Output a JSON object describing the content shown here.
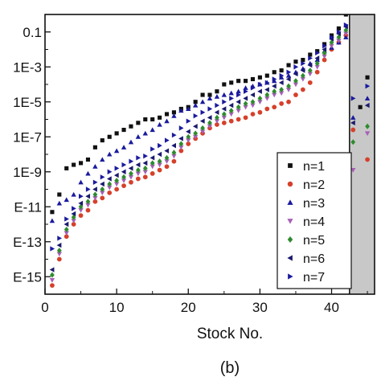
{
  "chart_data": {
    "type": "scatter",
    "panel_label": "(b)",
    "xlabel": "Stock No.",
    "ylabel": "",
    "xlim": [
      0,
      46
    ],
    "ylim_log10": [
      -16,
      0
    ],
    "y_scale": "log",
    "x_ticks": [
      0,
      10,
      20,
      30,
      40
    ],
    "x_tick_labels": [
      "0",
      "10",
      "20",
      "30",
      "40"
    ],
    "y_ticks_log10": [
      -1,
      -3,
      -5,
      -7,
      -9,
      -11,
      -13,
      -15
    ],
    "y_tick_labels": [
      "0.1",
      "1E-3",
      "1E-5",
      "1E-7",
      "1E-9",
      "E-11",
      "E-13",
      "E-15"
    ],
    "shaded_region_x": [
      42.5,
      46
    ],
    "shaded_color": "#c8c8c8",
    "legend_position": "lower-right",
    "series": [
      {
        "name": "n=1",
        "marker": "square",
        "color": "#111111",
        "x": [
          1,
          2,
          3,
          4,
          5,
          6,
          7,
          8,
          9,
          10,
          11,
          12,
          13,
          14,
          15,
          16,
          17,
          18,
          19,
          20,
          21,
          22,
          23,
          24,
          25,
          26,
          27,
          28,
          29,
          30,
          31,
          32,
          33,
          34,
          35,
          36,
          37,
          38,
          39,
          40,
          41,
          42,
          44,
          45
        ],
        "y_log10": [
          -11.3,
          -10.3,
          -8.8,
          -8.6,
          -8.5,
          -8.3,
          -7.6,
          -7.2,
          -7.0,
          -6.8,
          -6.6,
          -6.4,
          -6.2,
          -6.0,
          -6.0,
          -5.9,
          -5.7,
          -5.6,
          -5.4,
          -5.3,
          -5.0,
          -4.6,
          -4.6,
          -4.4,
          -4.0,
          -3.9,
          -3.8,
          -3.8,
          -3.7,
          -3.6,
          -3.5,
          -3.3,
          -3.2,
          -2.9,
          -2.7,
          -2.6,
          -2.3,
          -2.1,
          -1.7,
          -1.2,
          -0.8,
          0.0,
          -5.3,
          -3.6
        ]
      },
      {
        "name": "n=2",
        "marker": "circle",
        "color": "#d6402a",
        "x": [
          1,
          2,
          3,
          4,
          5,
          6,
          7,
          8,
          9,
          10,
          11,
          12,
          13,
          14,
          15,
          16,
          17,
          18,
          19,
          20,
          21,
          22,
          23,
          24,
          25,
          26,
          27,
          28,
          29,
          30,
          31,
          32,
          33,
          34,
          35,
          36,
          37,
          38,
          39,
          40,
          41,
          42,
          43,
          45
        ],
        "y_log10": [
          -15.5,
          -14.0,
          -12.7,
          -12.0,
          -11.5,
          -11.2,
          -10.7,
          -10.5,
          -10.2,
          -10.0,
          -9.8,
          -9.6,
          -9.4,
          -9.3,
          -9.1,
          -8.9,
          -8.7,
          -8.4,
          -7.8,
          -7.4,
          -7.1,
          -6.8,
          -6.5,
          -6.3,
          -6.2,
          -6.1,
          -6.0,
          -5.9,
          -5.7,
          -5.6,
          -5.4,
          -5.3,
          -5.1,
          -5.0,
          -4.6,
          -4.3,
          -3.9,
          -3.3,
          -2.6,
          -2.0,
          -1.6,
          -1.2,
          -6.6,
          -8.3
        ]
      },
      {
        "name": "n=3",
        "marker": "triangle-up",
        "color": "#1a1a9e",
        "x": [
          1,
          2,
          3,
          4,
          5,
          6,
          7,
          8,
          9,
          10,
          11,
          12,
          13,
          14,
          15,
          16,
          17,
          18,
          19,
          20,
          21,
          22,
          23,
          24,
          25,
          26,
          27,
          28,
          29,
          30,
          31,
          32,
          33,
          34,
          35,
          36,
          37,
          38,
          39,
          40,
          41,
          42,
          43,
          45
        ],
        "y_log10": [
          -11.8,
          -10.8,
          -10.6,
          -10.3,
          -9.6,
          -9.1,
          -8.7,
          -8.3,
          -8.0,
          -7.8,
          -7.6,
          -7.3,
          -7.0,
          -6.8,
          -6.6,
          -6.3,
          -6.1,
          -5.8,
          -5.5,
          -5.4,
          -5.2,
          -5.0,
          -4.8,
          -4.7,
          -4.6,
          -4.5,
          -4.4,
          -4.2,
          -4.1,
          -4.0,
          -3.9,
          -3.8,
          -3.6,
          -3.5,
          -3.3,
          -3.1,
          -2.8,
          -2.6,
          -2.1,
          -1.9,
          -1.6,
          -1.3,
          -5.9,
          -4.8
        ]
      },
      {
        "name": "n=4",
        "marker": "triangle-down",
        "color": "#a860b8",
        "x": [
          1,
          2,
          3,
          4,
          5,
          6,
          7,
          8,
          9,
          10,
          11,
          12,
          13,
          14,
          15,
          16,
          17,
          18,
          19,
          20,
          21,
          22,
          23,
          24,
          25,
          26,
          27,
          28,
          29,
          30,
          31,
          32,
          33,
          34,
          35,
          36,
          37,
          38,
          39,
          40,
          41,
          42,
          43,
          45
        ],
        "y_log10": [
          -15.2,
          -13.7,
          -12.5,
          -11.8,
          -11.2,
          -10.9,
          -10.5,
          -10.2,
          -9.9,
          -9.7,
          -9.5,
          -9.3,
          -9.1,
          -9.0,
          -8.7,
          -8.6,
          -8.4,
          -8.1,
          -7.6,
          -7.2,
          -7.0,
          -6.7,
          -6.4,
          -6.1,
          -5.9,
          -5.7,
          -5.5,
          -5.3,
          -5.2,
          -5.0,
          -4.8,
          -4.6,
          -4.5,
          -4.3,
          -4.0,
          -3.7,
          -3.4,
          -3.0,
          -2.4,
          -1.8,
          -1.5,
          -1.1,
          -8.9,
          -6.8
        ]
      },
      {
        "name": "n=5",
        "marker": "diamond",
        "color": "#2e8b2e",
        "x": [
          1,
          2,
          3,
          4,
          5,
          6,
          7,
          8,
          9,
          10,
          11,
          12,
          13,
          14,
          15,
          16,
          17,
          18,
          19,
          20,
          21,
          22,
          23,
          24,
          25,
          26,
          27,
          28,
          29,
          30,
          31,
          32,
          33,
          34,
          35,
          36,
          37,
          38,
          39,
          40,
          41,
          42,
          43,
          45
        ],
        "y_log10": [
          -14.9,
          -13.5,
          -12.3,
          -11.6,
          -11.0,
          -10.7,
          -10.3,
          -10.0,
          -9.7,
          -9.5,
          -9.3,
          -9.1,
          -8.9,
          -8.8,
          -8.5,
          -8.4,
          -8.2,
          -7.9,
          -7.4,
          -7.0,
          -6.8,
          -6.5,
          -6.2,
          -5.9,
          -5.7,
          -5.5,
          -5.3,
          -5.1,
          -5.0,
          -4.8,
          -4.6,
          -4.4,
          -4.3,
          -4.1,
          -3.8,
          -3.5,
          -3.2,
          -2.8,
          -2.2,
          -1.6,
          -1.3,
          -0.9,
          -7.3,
          -6.4
        ]
      },
      {
        "name": "n=6",
        "marker": "triangle-left",
        "color": "#1a1a6e",
        "x": [
          1,
          2,
          3,
          4,
          5,
          6,
          7,
          8,
          9,
          10,
          11,
          12,
          13,
          14,
          15,
          16,
          17,
          18,
          19,
          20,
          21,
          22,
          23,
          24,
          25,
          26,
          27,
          28,
          29,
          30,
          31,
          32,
          33,
          34,
          35,
          36,
          37,
          38,
          39,
          40,
          41,
          42,
          43,
          45
        ],
        "y_log10": [
          -14.6,
          -13.2,
          -12.0,
          -11.4,
          -10.8,
          -10.4,
          -10.0,
          -9.7,
          -9.4,
          -9.2,
          -9.0,
          -8.8,
          -8.6,
          -8.5,
          -8.2,
          -8.0,
          -7.8,
          -7.5,
          -7.1,
          -6.7,
          -6.4,
          -6.1,
          -5.9,
          -5.6,
          -5.4,
          -5.2,
          -5.0,
          -4.8,
          -4.6,
          -4.4,
          -4.3,
          -4.1,
          -3.9,
          -3.7,
          -3.4,
          -3.2,
          -2.9,
          -2.5,
          -2.0,
          -1.4,
          -1.1,
          -0.7,
          -6.2,
          -5.2
        ]
      },
      {
        "name": "n=7",
        "marker": "triangle-right",
        "color": "#1a1a9e",
        "x": [
          1,
          2,
          3,
          4,
          5,
          6,
          7,
          8,
          9,
          10,
          11,
          12,
          13,
          14,
          15,
          16,
          17,
          18,
          19,
          20,
          21,
          22,
          23,
          24,
          25,
          26,
          27,
          28,
          29,
          30,
          31,
          32,
          33,
          34,
          35,
          36,
          37,
          38,
          39,
          40,
          41,
          42,
          43,
          45
        ],
        "y_log10": [
          -13.4,
          -12.8,
          -11.7,
          -11.1,
          -10.4,
          -10.0,
          -9.6,
          -9.3,
          -9.0,
          -8.8,
          -8.6,
          -8.4,
          -8.2,
          -8.1,
          -7.7,
          -7.5,
          -7.2,
          -6.9,
          -6.5,
          -6.1,
          -5.8,
          -5.6,
          -5.4,
          -5.2,
          -5.0,
          -4.8,
          -4.6,
          -4.4,
          -4.2,
          -4.0,
          -3.9,
          -3.7,
          -3.5,
          -3.3,
          -3.0,
          -2.8,
          -2.5,
          -2.2,
          -1.8,
          -1.3,
          -1.0,
          -0.6,
          -4.8,
          -4.1
        ]
      }
    ]
  }
}
